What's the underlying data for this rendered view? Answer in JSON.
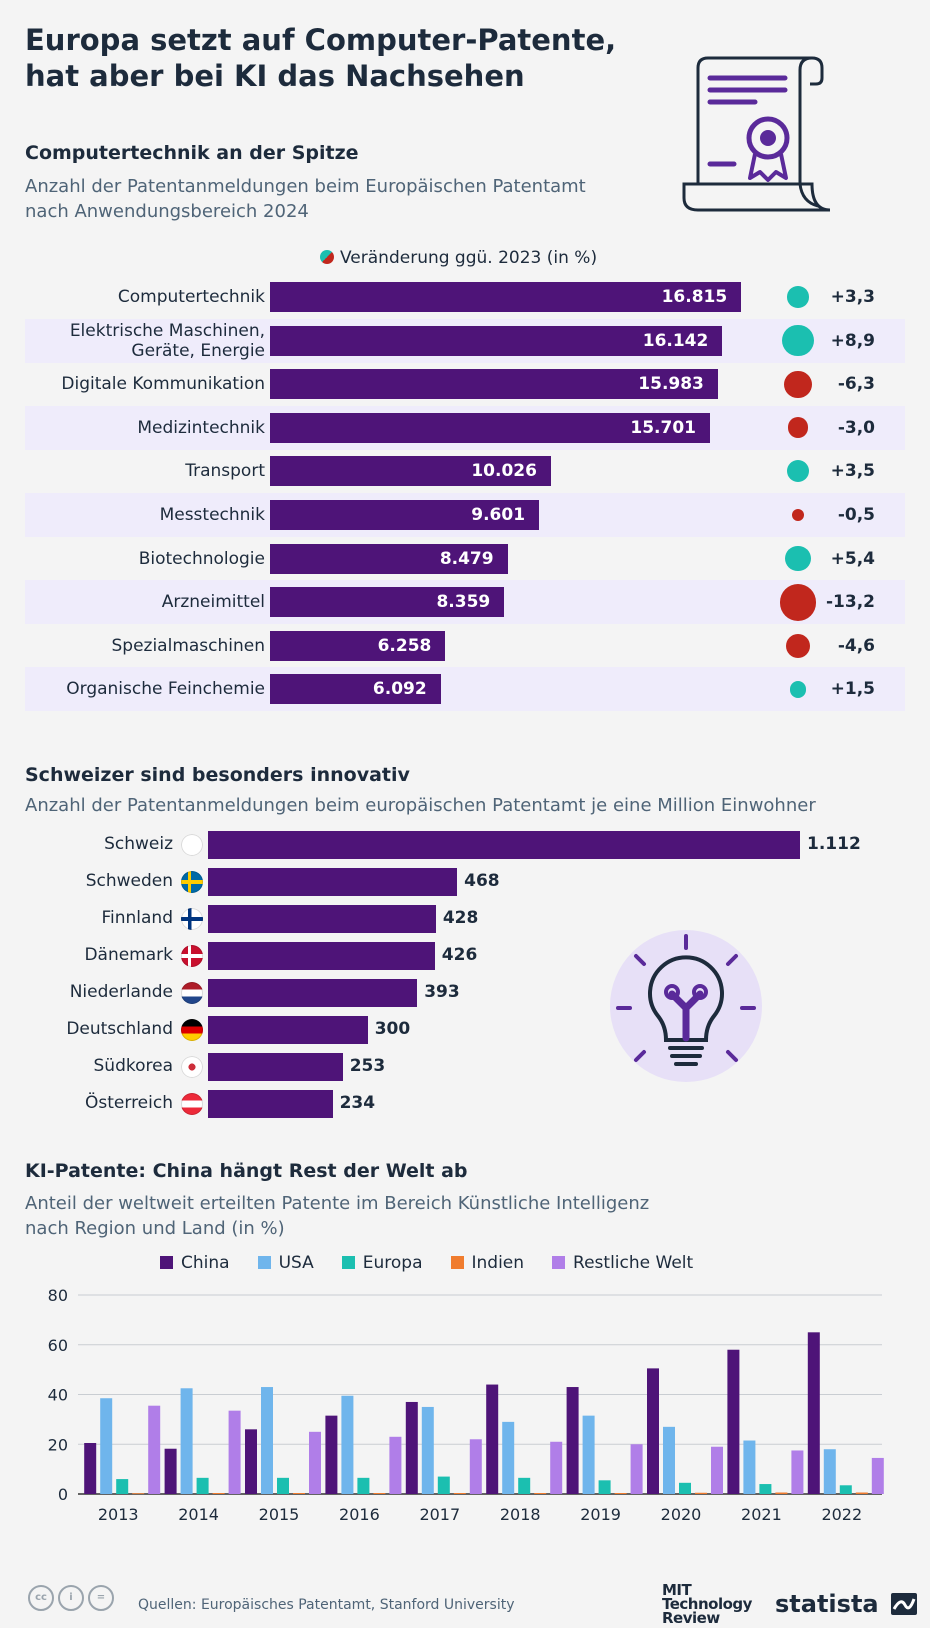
{
  "title_line1": "Europa setzt auf Computer-Patente,",
  "title_line2": "hat aber bei KI das Nachsehen",
  "colors": {
    "bar": "#4e1478",
    "positive": "#1bbfb0",
    "negative": "#c1271d",
    "row_band": "#efecfb"
  },
  "section1": {
    "title": "Computertechnik an der Spitze",
    "subtitle_line1": "Anzahl der Patentanmeldungen beim Europäischen Patentamt",
    "subtitle_line2": "nach Anwendungsbereich 2024",
    "legend": "Veränderung ggü. 2023 (in %)"
  },
  "section2": {
    "title": "Schweizer sind besonders innovativ",
    "subtitle": "Anzahl der Patentanmeldungen beim europäischen Patentamt je eine Million Einwohner"
  },
  "section3": {
    "title": "KI-Patente: China hängt Rest der Welt ab",
    "subtitle_line1": "Anteil der weltweit erteilten Patente im Bereich Künstliche Intelligenz",
    "subtitle_line2": "nach Region und Land (in %)"
  },
  "footer": {
    "source": "Quellen: Europäisches Patentamt, Stanford University",
    "mit_line1": "MIT",
    "mit_line2": "Technology",
    "mit_line3": "Review",
    "brand": "statista"
  },
  "chart_data": [
    {
      "type": "bar",
      "title": "Computertechnik an der Spitze",
      "categories": [
        {
          "line1": "Computertechnik",
          "line2": ""
        },
        {
          "line1": "Elektrische Maschinen,",
          "line2": "Geräte, Energie"
        },
        {
          "line1": "Digitale Kommunikation",
          "line2": ""
        },
        {
          "line1": "Medizintechnik",
          "line2": ""
        },
        {
          "line1": "Transport",
          "line2": ""
        },
        {
          "line1": "Messtechnik",
          "line2": ""
        },
        {
          "line1": "Biotechnologie",
          "line2": ""
        },
        {
          "line1": "Arzneimittel",
          "line2": ""
        },
        {
          "line1": "Spezialmaschinen",
          "line2": ""
        },
        {
          "line1": "Organische Feinchemie",
          "line2": ""
        }
      ],
      "values": [
        16815,
        16142,
        15983,
        15701,
        10026,
        9601,
        8479,
        8359,
        6258,
        6092
      ],
      "value_labels": [
        "16.815",
        "16.142",
        "15.983",
        "15.701",
        "10.026",
        "9.601",
        "8.479",
        "8.359",
        "6.258",
        "6.092"
      ],
      "changes": [
        3.3,
        8.9,
        -6.3,
        -3.0,
        3.5,
        -0.5,
        5.4,
        -13.2,
        -4.6,
        1.5
      ],
      "change_labels": [
        "+3,3",
        "+8,9",
        "-6,3",
        "-3,0",
        "+3,5",
        "-0,5",
        "+5,4",
        "-13,2",
        "-4,6",
        "+1,5"
      ],
      "xlim": [
        0,
        17200
      ]
    },
    {
      "type": "bar",
      "title": "Schweizer sind besonders innovativ",
      "categories": [
        "Schweiz",
        "Schweden",
        "Finnland",
        "Dänemark",
        "Niederlande",
        "Deutschland",
        "Südkorea",
        "Österreich"
      ],
      "flags": [
        "ch",
        "se",
        "fi",
        "dk",
        "nl",
        "de",
        "kr",
        "at"
      ],
      "values": [
        1112,
        468,
        428,
        426,
        393,
        300,
        253,
        234
      ],
      "value_labels": [
        "1.112",
        "468",
        "428",
        "426",
        "393",
        "300",
        "253",
        "234"
      ],
      "xlim": [
        0,
        1112
      ]
    },
    {
      "type": "bar",
      "title": "KI-Patente: China hängt Rest der Welt ab",
      "categories": [
        "2013",
        "2014",
        "2015",
        "2016",
        "2017",
        "2018",
        "2019",
        "2020",
        "2021",
        "2022"
      ],
      "series": [
        {
          "name": "China",
          "color": "#4e1478",
          "values": [
            20.5,
            18.2,
            26,
            31.5,
            37,
            44,
            43,
            50.5,
            58,
            65
          ]
        },
        {
          "name": "USA",
          "color": "#6fb5ec",
          "values": [
            38.5,
            42.5,
            43,
            39.5,
            35,
            29,
            31.5,
            27,
            21.5,
            18
          ]
        },
        {
          "name": "Europa",
          "color": "#1bbfb0",
          "values": [
            6,
            6.5,
            6.5,
            6.5,
            7,
            6.5,
            5.5,
            4.5,
            4,
            3.5
          ]
        },
        {
          "name": "Indien",
          "color": "#f07c2e",
          "values": [
            0.3,
            0.4,
            0.4,
            0.4,
            0.4,
            0.4,
            0.4,
            0.5,
            0.6,
            0.6
          ]
        },
        {
          "name": "Restliche Welt",
          "color": "#b07ee8",
          "values": [
            35.5,
            33.5,
            25,
            23,
            22,
            21,
            20,
            19,
            17.5,
            14.5
          ]
        }
      ],
      "yticks": [
        "0",
        "20",
        "40",
        "60",
        "80"
      ],
      "ylim": [
        0,
        80
      ],
      "xlabel": "",
      "ylabel": ""
    }
  ]
}
